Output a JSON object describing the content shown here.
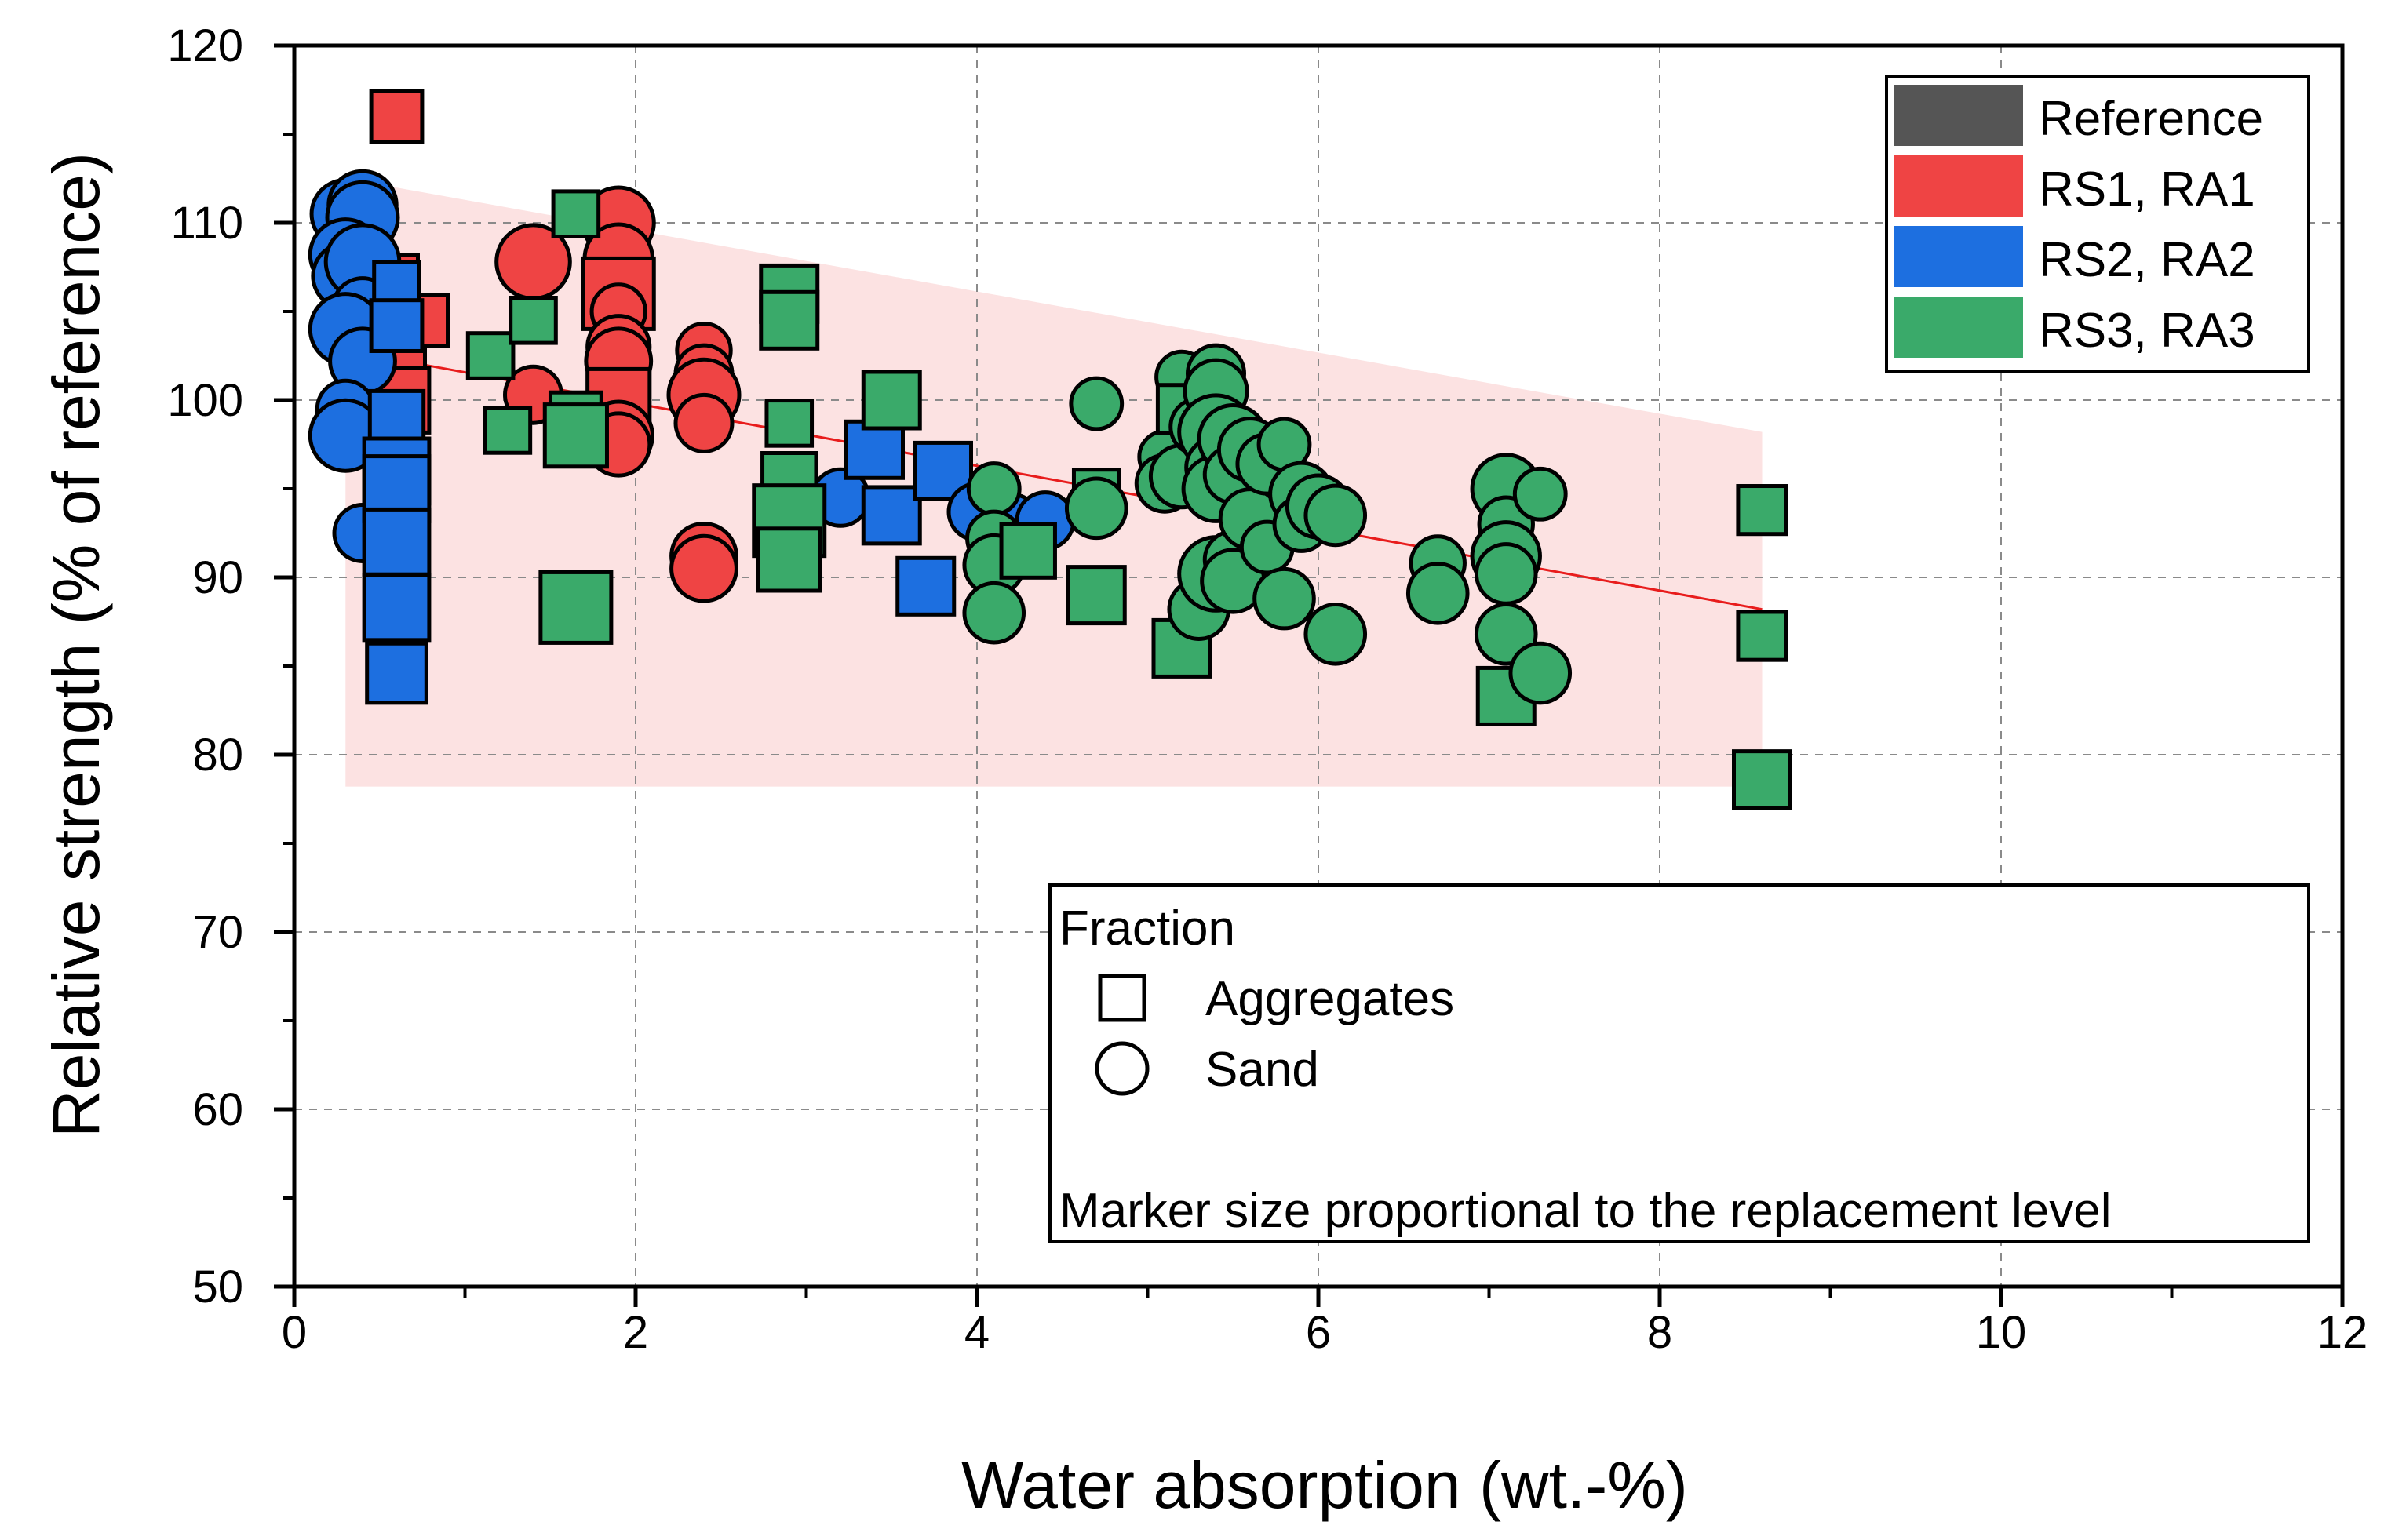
{
  "chart_data": {
    "type": "scatter",
    "xlabel": "Water absorption (wt.-%)",
    "ylabel": "Relative strength (% of reference)",
    "xlim": [
      0,
      12
    ],
    "ylim": [
      50,
      120
    ],
    "xticks": [
      0,
      2,
      4,
      6,
      8,
      10,
      12
    ],
    "yticks": [
      50,
      60,
      70,
      80,
      90,
      100,
      110,
      120
    ],
    "grid": true,
    "colors": {
      "reference": "#555555",
      "rs1": "#ef4444",
      "rs2": "#1d6fe0",
      "rs3": "#3aaa6a",
      "band": "#fbd3d3",
      "fit_line": "#e81c1c"
    },
    "legend_series": {
      "position": "top-right",
      "entries": [
        "Reference",
        "RS1, RA1",
        "RS2, RA2",
        "RS3, RA3"
      ]
    },
    "legend_fraction": {
      "position": "bottom-right",
      "title": "Fraction",
      "aggregates": "Aggregates",
      "sand": "Sand",
      "note": "Marker size proportional to the replacement level"
    },
    "trend_line": {
      "x": [
        0.3,
        8.6
      ],
      "y": [
        102.8,
        88.2
      ]
    },
    "prediction_band": {
      "upper": [
        [
          0.3,
          112.5
        ],
        [
          8.6,
          98.2
        ]
      ],
      "lower": [
        [
          0.3,
          78.2
        ],
        [
          8.6,
          78.2
        ]
      ]
    },
    "series": [
      {
        "name": "Reference",
        "color_key": "reference",
        "points": [
          {
            "x": 0.4,
            "y": 100,
            "s": 0.6,
            "m": "c"
          },
          {
            "x": 0.6,
            "y": 100,
            "s": 0.6,
            "m": "s"
          }
        ]
      },
      {
        "name": "RS1, RA1",
        "color_key": "rs1",
        "points": [
          {
            "x": 0.6,
            "y": 116,
            "s": 0.8,
            "m": "s"
          },
          {
            "x": 0.6,
            "y": 107,
            "s": 0.5,
            "m": "s"
          },
          {
            "x": 0.6,
            "y": 102,
            "s": 1.0,
            "m": "s"
          },
          {
            "x": 0.6,
            "y": 100,
            "s": 1.3,
            "m": "s"
          },
          {
            "x": 0.75,
            "y": 104.5,
            "s": 0.8,
            "m": "s"
          },
          {
            "x": 1.4,
            "y": 107.8,
            "s": 1.6,
            "m": "c"
          },
          {
            "x": 1.4,
            "y": 100.3,
            "s": 1.0,
            "m": "c"
          },
          {
            "x": 1.9,
            "y": 110,
            "s": 1.5,
            "m": "c"
          },
          {
            "x": 1.9,
            "y": 108,
            "s": 1.4,
            "m": "c"
          },
          {
            "x": 1.9,
            "y": 106,
            "s": 1.5,
            "m": "s"
          },
          {
            "x": 1.9,
            "y": 105,
            "s": 0.9,
            "m": "c"
          },
          {
            "x": 1.9,
            "y": 103,
            "s": 1.2,
            "m": "c"
          },
          {
            "x": 1.9,
            "y": 102.2,
            "s": 1.3,
            "m": "c"
          },
          {
            "x": 1.9,
            "y": 100,
            "s": 1.2,
            "m": "s"
          },
          {
            "x": 1.9,
            "y": 98,
            "s": 1.4,
            "m": "c"
          },
          {
            "x": 1.9,
            "y": 97.5,
            "s": 1.2,
            "m": "c"
          },
          {
            "x": 2.4,
            "y": 102.8,
            "s": 0.9,
            "m": "c"
          },
          {
            "x": 2.4,
            "y": 101.5,
            "s": 1.0,
            "m": "c"
          },
          {
            "x": 2.4,
            "y": 100.3,
            "s": 1.5,
            "m": "c"
          },
          {
            "x": 2.4,
            "y": 98.7,
            "s": 1.0,
            "m": "c"
          },
          {
            "x": 2.4,
            "y": 91.2,
            "s": 1.3,
            "m": "c"
          },
          {
            "x": 2.4,
            "y": 90.5,
            "s": 1.3,
            "m": "c"
          }
        ]
      },
      {
        "name": "RS2, RA2",
        "color_key": "rs2",
        "points": [
          {
            "x": 0.3,
            "y": 110.5,
            "s": 1.4,
            "m": "c"
          },
          {
            "x": 0.4,
            "y": 111,
            "s": 1.4,
            "m": "c"
          },
          {
            "x": 0.4,
            "y": 110.3,
            "s": 1.5,
            "m": "c"
          },
          {
            "x": 0.3,
            "y": 108.2,
            "s": 1.5,
            "m": "c"
          },
          {
            "x": 0.3,
            "y": 107,
            "s": 1.3,
            "m": "c"
          },
          {
            "x": 0.4,
            "y": 107.8,
            "s": 1.6,
            "m": "c"
          },
          {
            "x": 0.4,
            "y": 105.2,
            "s": 1.1,
            "m": "c"
          },
          {
            "x": 0.3,
            "y": 104,
            "s": 1.5,
            "m": "c"
          },
          {
            "x": 0.4,
            "y": 102.2,
            "s": 1.3,
            "m": "c"
          },
          {
            "x": 0.3,
            "y": 99.5,
            "s": 1.0,
            "m": "c"
          },
          {
            "x": 0.3,
            "y": 98,
            "s": 1.5,
            "m": "c"
          },
          {
            "x": 0.4,
            "y": 92.5,
            "s": 1.0,
            "m": "c"
          },
          {
            "x": 0.6,
            "y": 106.5,
            "s": 0.6,
            "m": "s"
          },
          {
            "x": 0.6,
            "y": 104.2,
            "s": 0.8,
            "m": "s"
          },
          {
            "x": 0.6,
            "y": 99,
            "s": 0.9,
            "m": "s"
          },
          {
            "x": 0.6,
            "y": 96,
            "s": 1.3,
            "m": "s"
          },
          {
            "x": 0.6,
            "y": 95,
            "s": 1.3,
            "m": "s"
          },
          {
            "x": 0.6,
            "y": 92,
            "s": 1.3,
            "m": "s"
          },
          {
            "x": 0.6,
            "y": 88.3,
            "s": 1.3,
            "m": "s"
          },
          {
            "x": 0.6,
            "y": 84.6,
            "s": 1.1,
            "m": "s"
          },
          {
            "x": 3.2,
            "y": 94.5,
            "s": 1.0,
            "m": "c"
          },
          {
            "x": 3.4,
            "y": 97.2,
            "s": 1.0,
            "m": "s"
          },
          {
            "x": 3.5,
            "y": 93.5,
            "s": 1.0,
            "m": "s"
          },
          {
            "x": 3.7,
            "y": 89.5,
            "s": 1.0,
            "m": "s"
          },
          {
            "x": 3.8,
            "y": 96,
            "s": 1.0,
            "m": "s"
          },
          {
            "x": 4.0,
            "y": 93.7,
            "s": 1.0,
            "m": "c"
          },
          {
            "x": 4.2,
            "y": 93.1,
            "s": 1.0,
            "m": "c"
          },
          {
            "x": 4.4,
            "y": 93.2,
            "s": 1.0,
            "m": "c"
          }
        ]
      },
      {
        "name": "RS3, RA3",
        "color_key": "rs3",
        "points": [
          {
            "x": 1.15,
            "y": 102.5,
            "s": 0.6,
            "m": "s"
          },
          {
            "x": 1.25,
            "y": 98.3,
            "s": 0.6,
            "m": "s"
          },
          {
            "x": 1.4,
            "y": 104.5,
            "s": 0.6,
            "m": "s"
          },
          {
            "x": 1.65,
            "y": 110.5,
            "s": 0.6,
            "m": "s"
          },
          {
            "x": 1.65,
            "y": 99,
            "s": 0.8,
            "m": "s"
          },
          {
            "x": 1.65,
            "y": 98,
            "s": 1.2,
            "m": "s"
          },
          {
            "x": 1.65,
            "y": 88.3,
            "s": 1.5,
            "m": "s"
          },
          {
            "x": 2.9,
            "y": 106,
            "s": 1.0,
            "m": "s"
          },
          {
            "x": 2.9,
            "y": 104.5,
            "s": 1.0,
            "m": "s"
          },
          {
            "x": 2.9,
            "y": 98.7,
            "s": 0.6,
            "m": "s"
          },
          {
            "x": 2.9,
            "y": 95.5,
            "s": 0.9,
            "m": "s"
          },
          {
            "x": 2.9,
            "y": 93.2,
            "s": 1.5,
            "m": "s"
          },
          {
            "x": 2.9,
            "y": 91,
            "s": 1.2,
            "m": "s"
          },
          {
            "x": 3.5,
            "y": 100,
            "s": 1.0,
            "m": "s"
          },
          {
            "x": 4.1,
            "y": 95,
            "s": 0.8,
            "m": "c"
          },
          {
            "x": 4.1,
            "y": 92.2,
            "s": 0.9,
            "m": "c"
          },
          {
            "x": 4.1,
            "y": 90.7,
            "s": 1.1,
            "m": "c"
          },
          {
            "x": 4.1,
            "y": 88,
            "s": 1.1,
            "m": "c"
          },
          {
            "x": 4.3,
            "y": 91.5,
            "s": 0.9,
            "m": "s"
          },
          {
            "x": 4.7,
            "y": 99.8,
            "s": 0.8,
            "m": "c"
          },
          {
            "x": 4.7,
            "y": 94.8,
            "s": 0.6,
            "m": "s"
          },
          {
            "x": 4.7,
            "y": 93.9,
            "s": 1.1,
            "m": "c"
          },
          {
            "x": 4.7,
            "y": 89,
            "s": 1.0,
            "m": "s"
          },
          {
            "x": 5.1,
            "y": 96.8,
            "s": 0.8,
            "m": "c"
          },
          {
            "x": 5.1,
            "y": 95.3,
            "s": 1.0,
            "m": "c"
          },
          {
            "x": 5.2,
            "y": 101.3,
            "s": 0.8,
            "m": "c"
          },
          {
            "x": 5.2,
            "y": 99.5,
            "s": 0.7,
            "m": "s"
          },
          {
            "x": 5.2,
            "y": 95.7,
            "s": 1.2,
            "m": "c"
          },
          {
            "x": 5.2,
            "y": 86,
            "s": 1.0,
            "m": "s"
          },
          {
            "x": 5.3,
            "y": 88.2,
            "s": 1.1,
            "m": "c"
          },
          {
            "x": 5.3,
            "y": 98.5,
            "s": 1.0,
            "m": "c"
          },
          {
            "x": 5.4,
            "y": 101.5,
            "s": 1.0,
            "m": "c"
          },
          {
            "x": 5.4,
            "y": 100.5,
            "s": 1.2,
            "m": "c"
          },
          {
            "x": 5.4,
            "y": 98.2,
            "s": 1.6,
            "m": "c"
          },
          {
            "x": 5.4,
            "y": 96.2,
            "s": 1.1,
            "m": "c"
          },
          {
            "x": 5.4,
            "y": 95,
            "s": 1.3,
            "m": "c"
          },
          {
            "x": 5.4,
            "y": 90.2,
            "s": 1.6,
            "m": "c"
          },
          {
            "x": 5.5,
            "y": 97.8,
            "s": 1.4,
            "m": "c"
          },
          {
            "x": 5.5,
            "y": 95.8,
            "s": 1.0,
            "m": "c"
          },
          {
            "x": 5.5,
            "y": 91,
            "s": 1.0,
            "m": "c"
          },
          {
            "x": 5.5,
            "y": 89.8,
            "s": 1.2,
            "m": "c"
          },
          {
            "x": 5.6,
            "y": 97.2,
            "s": 1.2,
            "m": "c"
          },
          {
            "x": 5.6,
            "y": 93.3,
            "s": 1.1,
            "m": "c"
          },
          {
            "x": 5.7,
            "y": 96.4,
            "s": 1.1,
            "m": "c"
          },
          {
            "x": 5.7,
            "y": 91.7,
            "s": 0.8,
            "m": "c"
          },
          {
            "x": 5.8,
            "y": 97.5,
            "s": 0.8,
            "m": "c"
          },
          {
            "x": 5.8,
            "y": 88.8,
            "s": 1.1,
            "m": "c"
          },
          {
            "x": 5.9,
            "y": 94.7,
            "s": 1.2,
            "m": "c"
          },
          {
            "x": 5.9,
            "y": 93,
            "s": 0.9,
            "m": "c"
          },
          {
            "x": 6.0,
            "y": 94,
            "s": 1.2,
            "m": "c"
          },
          {
            "x": 6.1,
            "y": 93.5,
            "s": 1.1,
            "m": "c"
          },
          {
            "x": 6.1,
            "y": 86.8,
            "s": 1.1,
            "m": "c"
          },
          {
            "x": 6.7,
            "y": 90.8,
            "s": 0.9,
            "m": "c"
          },
          {
            "x": 6.7,
            "y": 89.1,
            "s": 1.1,
            "m": "c"
          },
          {
            "x": 7.1,
            "y": 95,
            "s": 1.4,
            "m": "c"
          },
          {
            "x": 7.1,
            "y": 93,
            "s": 0.9,
            "m": "c"
          },
          {
            "x": 7.1,
            "y": 91.2,
            "s": 1.4,
            "m": "c"
          },
          {
            "x": 7.1,
            "y": 90.2,
            "s": 1.1,
            "m": "c"
          },
          {
            "x": 7.1,
            "y": 86.8,
            "s": 1.1,
            "m": "c"
          },
          {
            "x": 7.1,
            "y": 83.3,
            "s": 1.0,
            "m": "s"
          },
          {
            "x": 7.3,
            "y": 94.7,
            "s": 0.8,
            "m": "c"
          },
          {
            "x": 7.3,
            "y": 84.6,
            "s": 1.1,
            "m": "c"
          },
          {
            "x": 8.6,
            "y": 93.8,
            "s": 0.7,
            "m": "s"
          },
          {
            "x": 8.6,
            "y": 86.7,
            "s": 0.7,
            "m": "s"
          },
          {
            "x": 8.6,
            "y": 78.6,
            "s": 1.0,
            "m": "s"
          }
        ]
      }
    ]
  }
}
